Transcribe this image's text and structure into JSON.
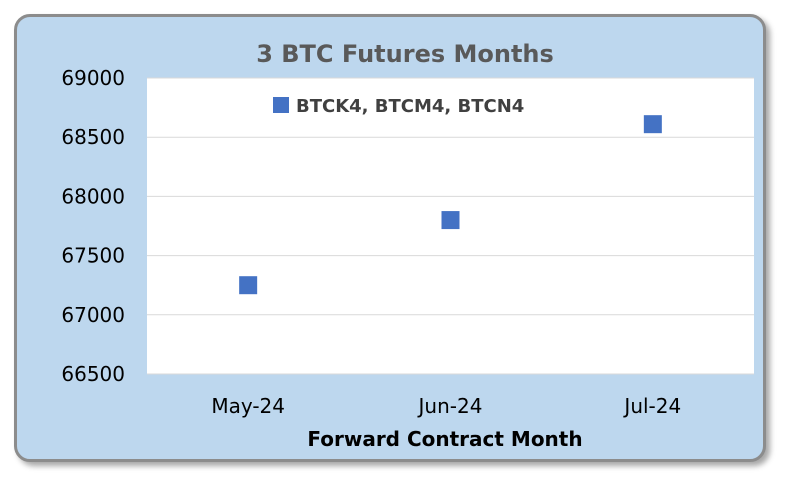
{
  "chart_data": {
    "type": "scatter",
    "title": "3 BTC  Futures Months",
    "categories": [
      "May-24",
      "Jun-24",
      "Jul-24"
    ],
    "series": [
      {
        "name": "BTCK4, BTCM4, BTCN4",
        "values": [
          67250,
          67800,
          68610
        ],
        "color": "#4472c4"
      }
    ],
    "xlabel": "Forward Contract Month",
    "ylabel": "",
    "ylim": [
      66500,
      69000
    ],
    "yticks": [
      66500,
      67000,
      67500,
      68000,
      68500,
      69000
    ],
    "grid": true,
    "legend_position": "top-center",
    "colors": {
      "background": "#bdd7ee",
      "plot_area": "#ffffff",
      "gridline": "#d9d9d9",
      "marker": "#4472c4"
    }
  }
}
